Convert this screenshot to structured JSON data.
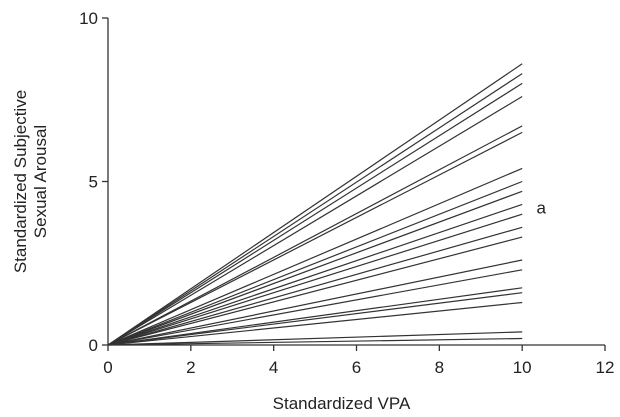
{
  "chart_data": {
    "type": "line",
    "title": "",
    "xlabel": "Standardized VPA",
    "ylabel": [
      "Standardized Subjective",
      "Sexual Arousal"
    ],
    "xlim": [
      0,
      12
    ],
    "ylim": [
      0,
      10
    ],
    "x_ticks": [
      0,
      2,
      4,
      6,
      8,
      10,
      12
    ],
    "y_ticks": [
      0,
      5,
      10
    ],
    "grid": false,
    "legend": "none",
    "line_color": "#333333",
    "annotations": [
      {
        "text": "a",
        "x": 10.2,
        "y": 4.2
      }
    ],
    "series": [
      {
        "x": [
          0,
          10
        ],
        "y": [
          0,
          8.6
        ]
      },
      {
        "x": [
          0,
          10
        ],
        "y": [
          0,
          8.3
        ]
      },
      {
        "x": [
          0,
          10
        ],
        "y": [
          0,
          8.0
        ]
      },
      {
        "x": [
          0,
          10
        ],
        "y": [
          0,
          7.6
        ]
      },
      {
        "x": [
          0,
          10
        ],
        "y": [
          0,
          6.7
        ]
      },
      {
        "x": [
          0,
          10
        ],
        "y": [
          0,
          6.5
        ]
      },
      {
        "x": [
          0,
          10
        ],
        "y": [
          0,
          5.4
        ]
      },
      {
        "x": [
          0,
          10
        ],
        "y": [
          0,
          5.0
        ]
      },
      {
        "x": [
          0,
          10
        ],
        "y": [
          0,
          4.7
        ]
      },
      {
        "x": [
          0,
          10
        ],
        "y": [
          0,
          4.3
        ]
      },
      {
        "x": [
          0,
          10
        ],
        "y": [
          0,
          4.0
        ]
      },
      {
        "x": [
          0,
          10
        ],
        "y": [
          0,
          3.6
        ]
      },
      {
        "x": [
          0,
          10
        ],
        "y": [
          0,
          3.3
        ]
      },
      {
        "x": [
          0,
          10
        ],
        "y": [
          0,
          2.6
        ]
      },
      {
        "x": [
          0,
          10
        ],
        "y": [
          0,
          2.3
        ]
      },
      {
        "x": [
          0,
          10
        ],
        "y": [
          0,
          1.75
        ]
      },
      {
        "x": [
          0,
          10
        ],
        "y": [
          0,
          1.6
        ]
      },
      {
        "x": [
          0,
          10
        ],
        "y": [
          0,
          1.3
        ]
      },
      {
        "x": [
          0,
          10
        ],
        "y": [
          0,
          0.4
        ]
      },
      {
        "x": [
          0,
          10
        ],
        "y": [
          0,
          0.2
        ]
      }
    ]
  }
}
